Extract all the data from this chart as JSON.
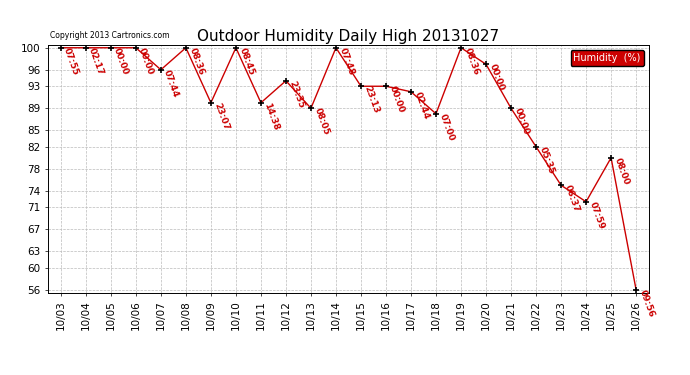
{
  "title": "Outdoor Humidity Daily High 20131027",
  "copyright_text": "Copyright 2013 Cartronics.com",
  "legend_label": "Humidity  (%)",
  "legend_color": "#cc0000",
  "line_color": "#cc0000",
  "marker_color": "black",
  "background_color": "#ffffff",
  "grid_color": "#bbbbbb",
  "dates": [
    "10/03",
    "10/04",
    "10/05",
    "10/06",
    "10/07",
    "10/08",
    "10/09",
    "10/10",
    "10/11",
    "10/12",
    "10/13",
    "10/14",
    "10/15",
    "10/16",
    "10/17",
    "10/18",
    "10/19",
    "10/20",
    "10/21",
    "10/22",
    "10/23",
    "10/24",
    "10/25",
    "10/26"
  ],
  "values": [
    100,
    100,
    100,
    100,
    96,
    100,
    90,
    100,
    90,
    94,
    89,
    100,
    93,
    93,
    92,
    88,
    100,
    97,
    89,
    82,
    75,
    72,
    80,
    56
  ],
  "time_labels": [
    "07:55",
    "02:17",
    "00:00",
    "00:00",
    "07:44",
    "08:36",
    "23:07",
    "08:45",
    "14:38",
    "23:35",
    "08:05",
    "07:48",
    "23:13",
    "00:00",
    "02:44",
    "07:00",
    "08:36",
    "00:00",
    "00:00",
    "05:35",
    "06:37",
    "07:59",
    "08:00",
    "09:56"
  ],
  "ylim_min": 56,
  "ylim_max": 100,
  "yticks": [
    56,
    60,
    63,
    67,
    71,
    74,
    78,
    82,
    85,
    89,
    93,
    96,
    100
  ],
  "title_fontsize": 11,
  "label_fontsize": 6.5,
  "tick_fontsize": 7.5
}
